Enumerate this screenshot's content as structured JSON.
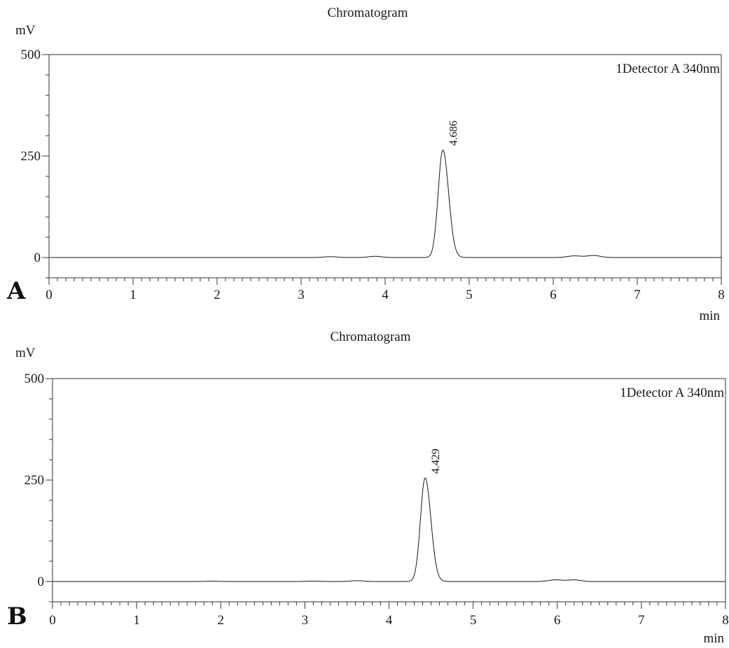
{
  "chart_data": [
    {
      "type": "line",
      "panel_label": "A",
      "title": "Chromatogram",
      "ylabel": "mV",
      "xlabel": "min",
      "legend": "1Detector A 340nm",
      "legend_position": "top-right",
      "xlim": [
        0,
        8
      ],
      "ylim": [
        -50,
        500
      ],
      "x_ticks": [
        "0",
        "1",
        "2",
        "3",
        "4",
        "5",
        "6",
        "7",
        "8"
      ],
      "y_ticks": [
        "0",
        "250",
        "500"
      ],
      "grid": false,
      "peaks": [
        {
          "rt": 4.686,
          "height": 265,
          "sigma": 0.055,
          "label": "4.686"
        }
      ],
      "minor_bumps": [
        {
          "rt": 3.35,
          "height": 2
        },
        {
          "rt": 3.88,
          "height": 3
        },
        {
          "rt": 6.25,
          "height": 4
        },
        {
          "rt": 6.48,
          "height": 5
        }
      ]
    },
    {
      "type": "line",
      "panel_label": "B",
      "title": "Chromatogram",
      "ylabel": "mV",
      "xlabel": "min",
      "legend": "1Detector A 340nm",
      "legend_position": "top-right",
      "xlim": [
        0,
        8
      ],
      "ylim": [
        -50,
        500
      ],
      "x_ticks": [
        "0",
        "1",
        "2",
        "3",
        "4",
        "5",
        "6",
        "7",
        "8"
      ],
      "y_ticks": [
        "0",
        "250",
        "500"
      ],
      "grid": false,
      "peaks": [
        {
          "rt": 4.429,
          "height": 255,
          "sigma": 0.055,
          "label": "4.429"
        }
      ],
      "minor_bumps": [
        {
          "rt": 1.9,
          "height": 1
        },
        {
          "rt": 3.1,
          "height": 1
        },
        {
          "rt": 3.62,
          "height": 2
        },
        {
          "rt": 5.98,
          "height": 4
        },
        {
          "rt": 6.2,
          "height": 4
        }
      ]
    }
  ]
}
